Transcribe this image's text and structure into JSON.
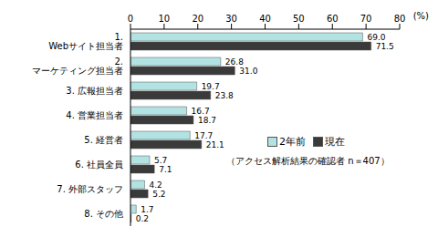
{
  "chart_data": {
    "type": "bar",
    "orientation": "horizontal",
    "categories": [
      "1. Webサイト担当者",
      "2. マーケティング担当者",
      "3. 広報担当者",
      "4. 営業担当者",
      "5. 経営者",
      "6. 社員全員",
      "7. 外部スタッフ",
      "8. その他"
    ],
    "series": [
      {
        "name": "2年前",
        "color": "#b2e2e2",
        "values": [
          69.0,
          26.8,
          19.7,
          16.7,
          17.7,
          5.7,
          4.2,
          1.7
        ],
        "value_labels": [
          "69.0",
          "26.8",
          "19.7",
          "16.7",
          "17.7",
          "5.7",
          "4.2",
          "1.7"
        ]
      },
      {
        "name": "現在",
        "color": "#3a3a3a",
        "values": [
          71.5,
          31.0,
          23.8,
          18.7,
          21.1,
          7.1,
          5.2,
          0.2
        ],
        "value_labels": [
          "71.5",
          "31.0",
          "23.8",
          "18.7",
          "21.1",
          "7.1",
          "5.2",
          "0.2"
        ]
      }
    ],
    "xlabel": "(%)",
    "xlim": [
      0,
      80
    ],
    "xticks": [
      0,
      10,
      20,
      30,
      40,
      50,
      60,
      70,
      80
    ],
    "annotations": [
      "（アクセス解析結果の確認者 n＝407）"
    ],
    "legend": "right",
    "data_labels": true,
    "grid": false
  }
}
